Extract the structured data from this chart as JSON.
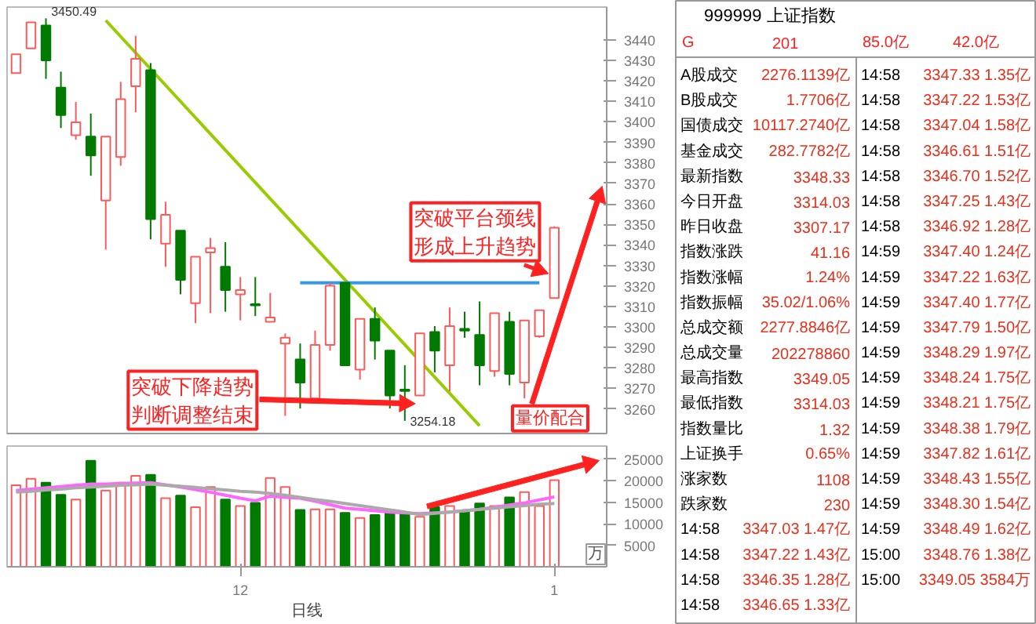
{
  "chart_data": [
    {
      "type": "candlestick",
      "tick_labels": "y",
      "categories": [
        null,
        null,
        null,
        null,
        null,
        null,
        null,
        null,
        null,
        null,
        null,
        null,
        null,
        null,
        null,
        null,
        null,
        null,
        null,
        null,
        null,
        null,
        null,
        null,
        null,
        null,
        null,
        null,
        null,
        null,
        null,
        null,
        null,
        null,
        null,
        null,
        null
      ],
      "ohlc": [
        [
          3423.8,
          3433.0,
          3423.8,
          3433.0
        ],
        [
          3435.8,
          3448.5,
          3435.8,
          3448.5
        ],
        [
          3447.0,
          3450.49,
          3421.0,
          3430.0
        ],
        [
          3416.7,
          3424.5,
          3397.0,
          3403.3
        ],
        [
          3393.5,
          3409.7,
          3391.3,
          3399.8
        ],
        [
          3392.8,
          3404.0,
          3373.7,
          3383.6
        ],
        [
          3361.7,
          3392.8,
          3337.7,
          3392.8
        ],
        [
          3382.9,
          3419.5,
          3378.6,
          3411.1
        ],
        [
          3417.4,
          3442.0,
          3404.7,
          3430.8
        ],
        [
          3425.2,
          3428.7,
          3342.7,
          3352.6
        ],
        [
          3340.6,
          3361.0,
          3329.3,
          3354.7
        ],
        [
          3346.9,
          3346.9,
          3315.9,
          3322.9
        ],
        [
          3311.6,
          3334.2,
          3301.8,
          3334.2
        ],
        [
          3336.3,
          3343.4,
          3306.7,
          3338.4
        ],
        [
          3329.3,
          3341.3,
          3307.4,
          3318.0
        ],
        [
          3315.9,
          3324.3,
          3303.2,
          3318.0
        ],
        [
          3311.1,
          3324.3,
          3305.3,
          3310.5
        ],
        [
          3302.5,
          3316.6,
          3302.5,
          3304.6
        ],
        [
          3291.9,
          3296.8,
          3256.6,
          3294.7
        ],
        [
          3284.1,
          3291.9,
          3260.2,
          3272.9
        ],
        [
          3265.1,
          3298.2,
          3265.1,
          3291.2
        ],
        [
          3291.2,
          3321.5,
          3288.4,
          3320.1
        ],
        [
          3321.5,
          3321.5,
          3281.3,
          3281.3
        ],
        [
          3279.2,
          3303.9,
          3274.3,
          3303.9
        ],
        [
          3303.9,
          3309.5,
          3284.1,
          3293.3
        ],
        [
          3288.4,
          3288.4,
          3260.2,
          3266.5
        ],
        [
          3269.4,
          3281.3,
          3254.18,
          3268.7
        ],
        [
          3266.5,
          3296.8,
          3266.5,
          3296.8
        ],
        [
          3297.5,
          3300.4,
          3277.8,
          3288.4
        ],
        [
          3281.3,
          3309.5,
          3268.6,
          3300.4
        ],
        [
          3299.0,
          3307.4,
          3294.7,
          3298.2
        ],
        [
          3296.1,
          3312.4,
          3271.5,
          3281.3
        ],
        [
          3278.5,
          3306.7,
          3275.7,
          3306.7
        ],
        [
          3302.5,
          3307.4,
          3271.5,
          3277.1
        ],
        [
          3272.9,
          3303.2,
          3265.1,
          3303.2
        ],
        [
          3295.4,
          3308.1,
          3294.7,
          3308.1
        ],
        [
          3314.03,
          3349.05,
          3314.03,
          3348.33
        ]
      ],
      "colors": [
        "#ff5a5a",
        "#ff5a5a",
        "#007a00",
        "#007a00",
        "#ff5a5a",
        "#007a00",
        "#ff5a5a",
        "#ff5a5a",
        "#ff5a5a",
        "#007a00",
        "#ff5a5a",
        "#007a00",
        "#ff5a5a",
        "#ff5a5a",
        "#007a00",
        "#ff5a5a",
        "#007a00",
        "#ff5a5a",
        "#ff5a5a",
        "#007a00",
        "#ff5a5a",
        "#ff5a5a",
        "#007a00",
        "#ff5a5a",
        "#007a00",
        "#007a00",
        "#007a00",
        "#ff5a5a",
        "#007a00",
        "#ff5a5a",
        "#007a00",
        "#007a00",
        "#ff5a5a",
        "#007a00",
        "#ff5a5a",
        "#ff5a5a",
        "#ff5a5a"
      ],
      "series": [
        {
          "type": "line",
          "color": "#99cc00",
          "values": [
            null,
            null,
            null,
            null,
            null,
            null,
            3449.5,
            null,
            null,
            null,
            null,
            null,
            null,
            null,
            null,
            null,
            null,
            null,
            null,
            null,
            null,
            null,
            null,
            null,
            null,
            null,
            null,
            null,
            null,
            null,
            null,
            3251.8,
            null,
            null,
            null,
            null,
            null
          ]
        },
        {
          "type": "line",
          "color": "#3399ee",
          "values": [
            null,
            null,
            null,
            null,
            null,
            null,
            null,
            null,
            null,
            null,
            null,
            null,
            null,
            null,
            null,
            null,
            null,
            null,
            null,
            3321.5,
            3321.5,
            3321.5,
            3321.5,
            3321.5,
            3321.5,
            3321.5,
            3321.5,
            3321.5,
            3321.5,
            3321.5,
            3321.5,
            3321.5,
            3321.5,
            3321.5,
            3321.5,
            3321.5,
            null
          ]
        }
      ],
      "ylim": [
        3248,
        3456
      ],
      "yticks": [
        3260,
        3270,
        3280,
        3290,
        3300,
        3310,
        3320,
        3330,
        3340,
        3350,
        3360,
        3370,
        3380,
        3390,
        3400,
        3410,
        3420,
        3430,
        3440
      ],
      "annotations": [
        "突破下降趋势判断调整结束",
        "突破平台颈线形成上升趋势",
        "量价配合",
        "3450.49",
        "3254.18"
      ]
    },
    {
      "type": "bar",
      "categories": [
        null,
        null,
        null,
        null,
        null,
        null,
        null,
        null,
        null,
        null,
        null,
        null,
        null,
        null,
        null,
        "12",
        null,
        null,
        null,
        null,
        null,
        null,
        null,
        null,
        null,
        null,
        null,
        null,
        null,
        null,
        null,
        null,
        null,
        null,
        null,
        null,
        "1"
      ],
      "series": [
        {
          "type": "bar",
          "values": [
            18900,
            20400,
            19500,
            16700,
            15600,
            24600,
            17700,
            19500,
            21100,
            21300,
            15900,
            16500,
            13800,
            18500,
            15600,
            14100,
            14800,
            20600,
            18500,
            13200,
            13300,
            13300,
            12500,
            11300,
            12000,
            13200,
            12300,
            11600,
            13800,
            14100,
            12700,
            14700,
            14100,
            16100,
            17300,
            14100,
            20100
          ],
          "colors": [
            "#ff5a5a",
            "#ff5a5a",
            "#007a00",
            "#007a00",
            "#ff5a5a",
            "#007a00",
            "#ff5a5a",
            "#ff5a5a",
            "#ff5a5a",
            "#007a00",
            "#ff5a5a",
            "#007a00",
            "#ff5a5a",
            "#ff5a5a",
            "#007a00",
            "#ff5a5a",
            "#007a00",
            "#ff5a5a",
            "#ff5a5a",
            "#007a00",
            "#ff5a5a",
            "#ff5a5a",
            "#007a00",
            "#ff5a5a",
            "#007a00",
            "#007a00",
            "#007a00",
            "#ff5a5a",
            "#007a00",
            "#ff5a5a",
            "#007a00",
            "#007a00",
            "#ff5a5a",
            "#007a00",
            "#ff5a5a",
            "#ff5a5a",
            "#ff5a5a"
          ]
        },
        {
          "type": "line",
          "color": "#ff66ff",
          "values": [
            17700,
            18000,
            18300,
            18600,
            18900,
            19200,
            19200,
            19300,
            19400,
            19500,
            19000,
            18500,
            17900,
            17300,
            16600,
            15900,
            15300,
            16400,
            16100,
            15900,
            15200,
            14400,
            13600,
            13300,
            13000,
            12700,
            12500,
            12300,
            12500,
            12700,
            13000,
            13300,
            13800,
            14300,
            14800,
            15500,
            16200
          ]
        },
        {
          "type": "line",
          "color": "#aaaaaa",
          "values": [
            17300,
            17500,
            17800,
            18000,
            18300,
            18500,
            18700,
            18900,
            19000,
            19200,
            18900,
            18700,
            18400,
            18100,
            17800,
            17500,
            17300,
            17000,
            16600,
            16100,
            15600,
            15200,
            14700,
            14200,
            13700,
            13200,
            12700,
            12100,
            12400,
            12700,
            13000,
            13300,
            13600,
            13900,
            14200,
            14500,
            14700
          ]
        }
      ],
      "ylim": [
        0,
        28000
      ],
      "yticks": [
        5000,
        10000,
        15000,
        20000,
        25000
      ],
      "xlabel": "日线",
      "annotations": [
        "万"
      ]
    },
    {
      "type": "other",
      "title": "999999 上证指数",
      "annotations": [
        "G",
        "201",
        "85.0亿",
        "42.0亿"
      ],
      "categories": [
        "A股成交",
        "B股成交",
        "国债成交",
        "基金成交",
        "最新指数",
        "今日开盘",
        "昨日收盘",
        "指数涨跌",
        "指数涨幅",
        "指数振幅",
        "总成交额",
        "总成交量",
        "最高指数",
        "最低指数",
        "指数量比",
        "上证换手",
        "涨家数",
        "跌家数",
        "14:58",
        "14:58",
        "14:58",
        "14:58",
        "14:58",
        "14:58",
        "14:58",
        "14:58",
        "14:58",
        "14:58",
        "14:58",
        "14:59",
        "14:59",
        "14:59",
        "14:59",
        "14:59",
        "14:59",
        "14:59",
        "14:59",
        "14:59",
        "14:59",
        "14:59",
        "14:59",
        "15:00",
        "15:00"
      ],
      "value_labels": [
        "2276.1139亿",
        "1.7706亿",
        "10117.2740亿",
        "282.7782亿",
        "3348.33",
        "3314.03",
        "3307.17",
        "41.16",
        "1.24%",
        "35.02/1.06%",
        "2277.8846亿",
        "202278860",
        "3349.05",
        "3314.03",
        "1.32",
        "0.65%",
        "1108",
        "230",
        "3347.03 1.47亿",
        "3347.22 1.43亿",
        "3346.35 1.28亿",
        "3346.65 1.33亿",
        "3347.33 1.35亿",
        "3347.22 1.53亿",
        "3347.04 1.58亿",
        "3346.61 1.51亿",
        "3346.70 1.52亿",
        "3347.25 1.43亿",
        "3346.92 1.28亿",
        "3347.40 1.24亿",
        "3347.22 1.63亿",
        "3347.40 1.77亿",
        "3347.79 1.50亿",
        "3348.29 1.97亿",
        "3348.24 1.75亿",
        "3348.21 1.75亿",
        "3348.38 1.79亿",
        "3347.82 1.61亿",
        "3348.43 1.55亿",
        "3348.30 1.54亿",
        "3348.49 1.62亿",
        "3348.76 1.38亿",
        "3349.05 3584万"
      ]
    }
  ]
}
